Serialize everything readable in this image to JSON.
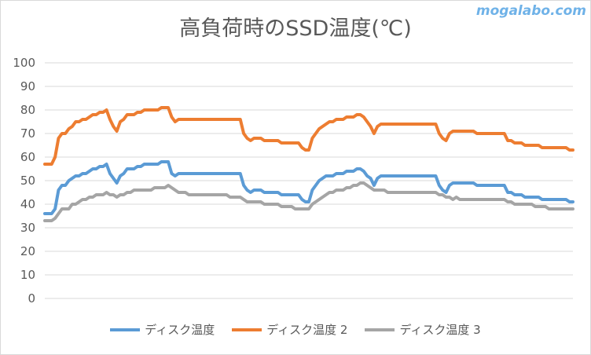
{
  "watermark": "mogalabo.com",
  "chart_data": {
    "type": "line",
    "title": "高負荷時のSSD温度(℃)",
    "xlabel": "",
    "ylabel": "",
    "ylim": [
      0,
      100
    ],
    "yticks": [
      "100",
      "90",
      "80",
      "70",
      "60",
      "50",
      "40",
      "30",
      "20",
      "10",
      "0"
    ],
    "grid": true,
    "legend_position": "bottom",
    "series": [
      {
        "name": "ディスク温度",
        "color": "#5b9bd5",
        "values": [
          36,
          36,
          36,
          38,
          46,
          48,
          48,
          50,
          51,
          52,
          52,
          53,
          53,
          54,
          55,
          55,
          56,
          56,
          57,
          53,
          51,
          49,
          52,
          53,
          55,
          55,
          55,
          56,
          56,
          57,
          57,
          57,
          57,
          57,
          58,
          58,
          58,
          53,
          52,
          53,
          53,
          53,
          53,
          53,
          53,
          53,
          53,
          53,
          53,
          53,
          53,
          53,
          53,
          53,
          53,
          53,
          53,
          53,
          48,
          46,
          45,
          46,
          46,
          46,
          45,
          45,
          45,
          45,
          45,
          44,
          44,
          44,
          44,
          44,
          44,
          42,
          41,
          41,
          46,
          48,
          50,
          51,
          52,
          52,
          52,
          53,
          53,
          53,
          54,
          54,
          54,
          55,
          55,
          54,
          52,
          51,
          48,
          51,
          52,
          52,
          52,
          52,
          52,
          52,
          52,
          52,
          52,
          52,
          52,
          52,
          52,
          52,
          52,
          52,
          52,
          48,
          46,
          45,
          48,
          49,
          49,
          49,
          49,
          49,
          49,
          49,
          48,
          48,
          48,
          48,
          48,
          48,
          48,
          48,
          48,
          45,
          45,
          44,
          44,
          44,
          43,
          43,
          43,
          43,
          43,
          42,
          42,
          42,
          42,
          42,
          42,
          42,
          42,
          41,
          41
        ]
      },
      {
        "name": "ディスク温度 2",
        "color": "#ed7d31",
        "values": [
          57,
          57,
          57,
          60,
          68,
          70,
          70,
          72,
          73,
          75,
          75,
          76,
          76,
          77,
          78,
          78,
          79,
          79,
          80,
          76,
          73,
          71,
          75,
          76,
          78,
          78,
          78,
          79,
          79,
          80,
          80,
          80,
          80,
          80,
          81,
          81,
          81,
          77,
          75,
          76,
          76,
          76,
          76,
          76,
          76,
          76,
          76,
          76,
          76,
          76,
          76,
          76,
          76,
          76,
          76,
          76,
          76,
          76,
          70,
          68,
          67,
          68,
          68,
          68,
          67,
          67,
          67,
          67,
          67,
          66,
          66,
          66,
          66,
          66,
          66,
          64,
          63,
          63,
          68,
          70,
          72,
          73,
          74,
          75,
          75,
          76,
          76,
          76,
          77,
          77,
          77,
          78,
          78,
          77,
          75,
          73,
          70,
          73,
          74,
          74,
          74,
          74,
          74,
          74,
          74,
          74,
          74,
          74,
          74,
          74,
          74,
          74,
          74,
          74,
          74,
          70,
          68,
          67,
          70,
          71,
          71,
          71,
          71,
          71,
          71,
          71,
          70,
          70,
          70,
          70,
          70,
          70,
          70,
          70,
          70,
          67,
          67,
          66,
          66,
          66,
          65,
          65,
          65,
          65,
          65,
          64,
          64,
          64,
          64,
          64,
          64,
          64,
          64,
          63,
          63
        ]
      },
      {
        "name": "ディスク温度 3",
        "color": "#a5a5a5",
        "values": [
          33,
          33,
          33,
          34,
          36,
          38,
          38,
          38,
          40,
          40,
          41,
          42,
          42,
          43,
          43,
          44,
          44,
          44,
          45,
          44,
          44,
          43,
          44,
          44,
          45,
          45,
          46,
          46,
          46,
          46,
          46,
          46,
          47,
          47,
          47,
          47,
          48,
          47,
          46,
          45,
          45,
          45,
          44,
          44,
          44,
          44,
          44,
          44,
          44,
          44,
          44,
          44,
          44,
          44,
          43,
          43,
          43,
          43,
          42,
          41,
          41,
          41,
          41,
          41,
          40,
          40,
          40,
          40,
          40,
          39,
          39,
          39,
          39,
          38,
          38,
          38,
          38,
          38,
          40,
          41,
          42,
          43,
          44,
          45,
          45,
          46,
          46,
          46,
          47,
          47,
          48,
          48,
          49,
          49,
          48,
          47,
          46,
          46,
          46,
          46,
          45,
          45,
          45,
          45,
          45,
          45,
          45,
          45,
          45,
          45,
          45,
          45,
          45,
          45,
          45,
          44,
          44,
          43,
          43,
          42,
          43,
          42,
          42,
          42,
          42,
          42,
          42,
          42,
          42,
          42,
          42,
          42,
          42,
          42,
          42,
          41,
          41,
          40,
          40,
          40,
          40,
          40,
          40,
          39,
          39,
          39,
          39,
          38,
          38,
          38,
          38,
          38,
          38,
          38,
          38
        ]
      }
    ]
  }
}
